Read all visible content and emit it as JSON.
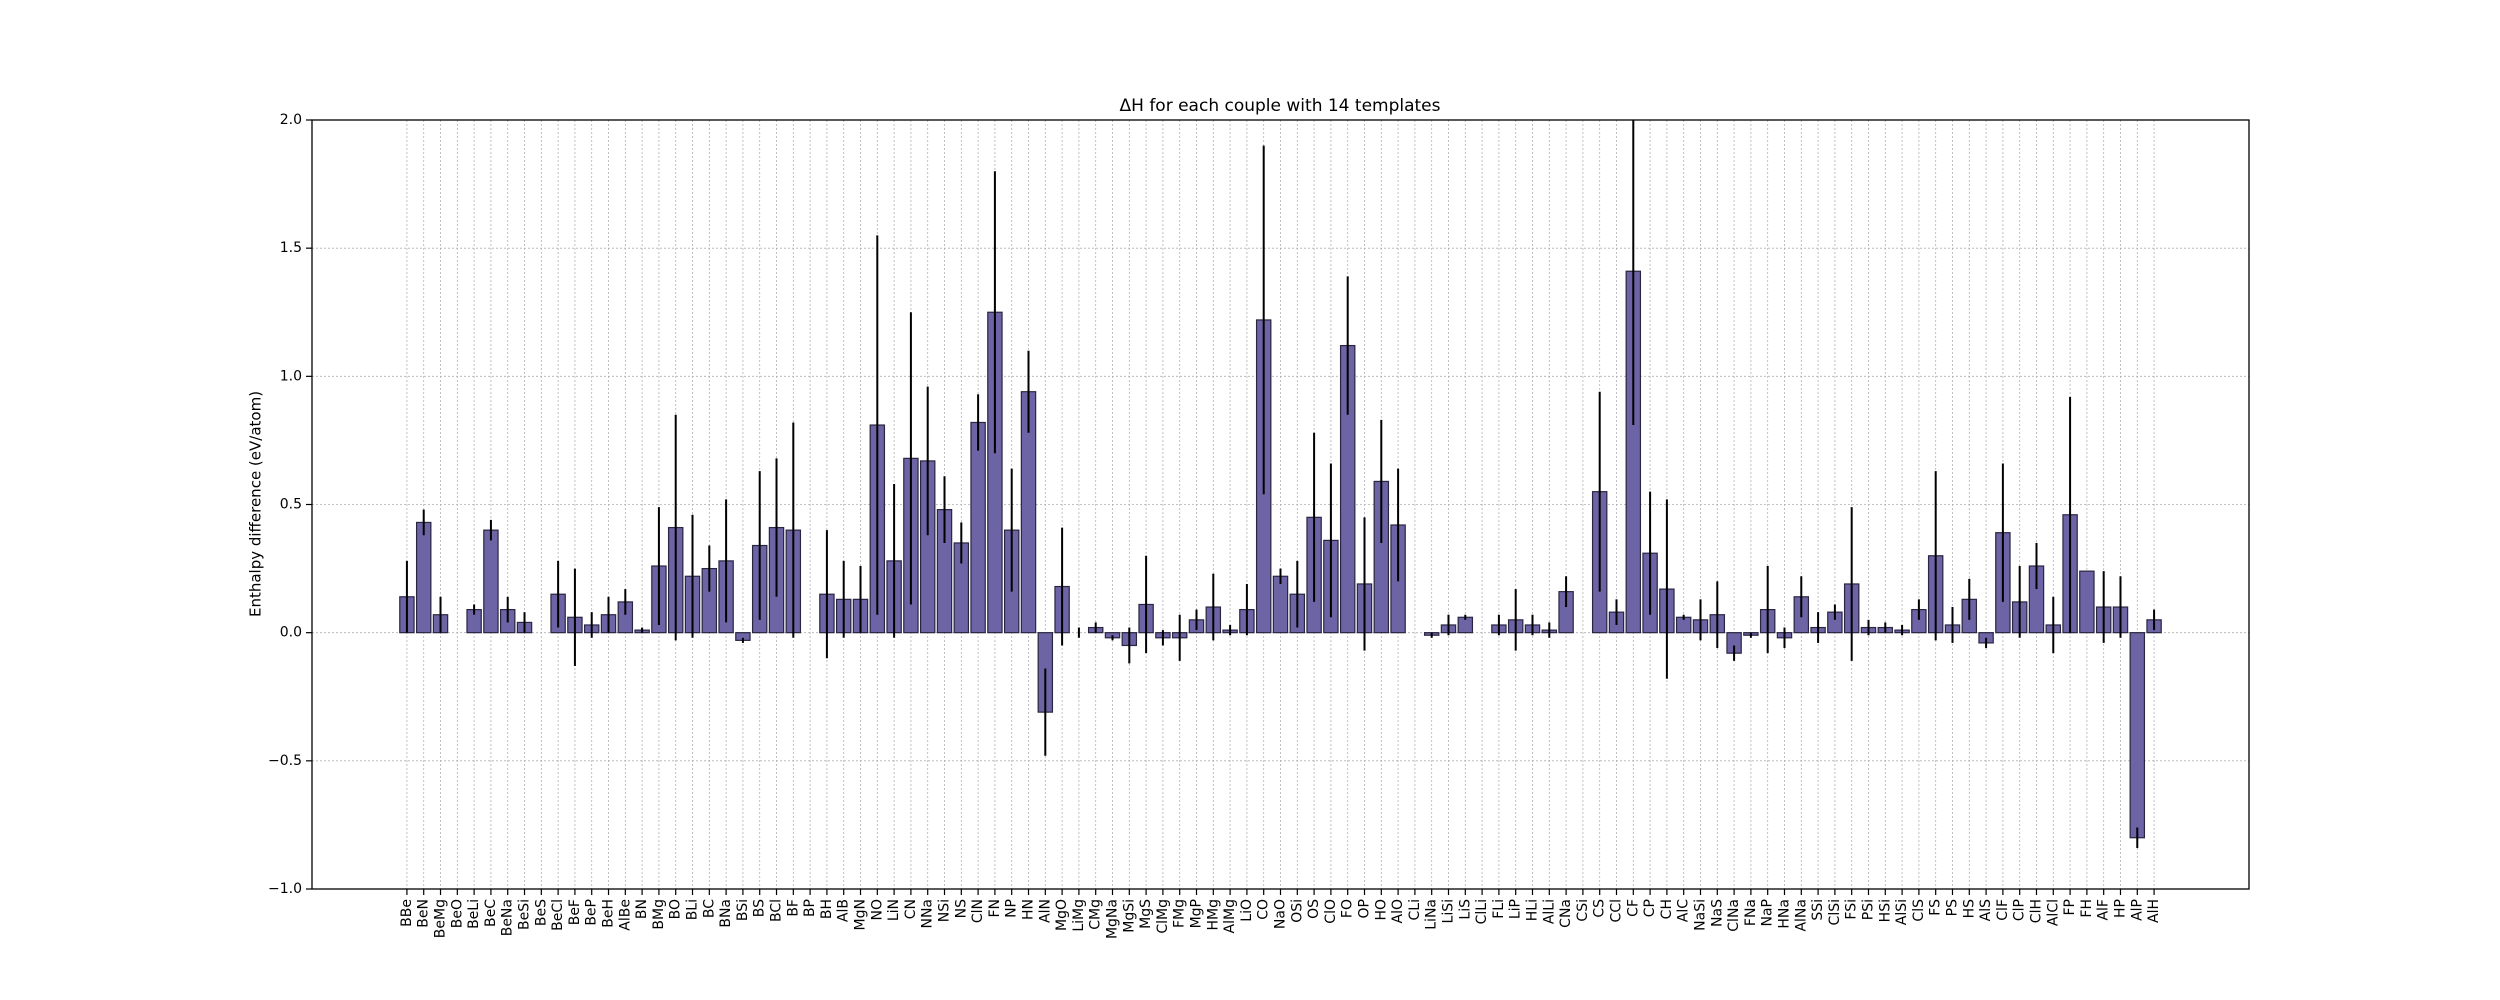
{
  "chart_data": {
    "type": "bar",
    "title": "ΔH for each couple with 14 templates",
    "y_label": "Enthalpy difference (eV/atom)",
    "categories": [
      "BBe",
      "BeN",
      "BeMg",
      "BeO",
      "BeLi",
      "BeC",
      "BeNa",
      "BeSi",
      "BeS",
      "BeCl",
      "BeF",
      "BeP",
      "BeH",
      "AlBe",
      "BN",
      "BMg",
      "BO",
      "BLi",
      "BC",
      "BNa",
      "BSi",
      "BS",
      "BCl",
      "BF",
      "BP",
      "BH",
      "AlB",
      "MgN",
      "NO",
      "LiN",
      "CN",
      "NNa",
      "NSi",
      "NS",
      "ClN",
      "FN",
      "NP",
      "HN",
      "AlN",
      "MgO",
      "LiMg",
      "CMg",
      "MgNa",
      "MgSi",
      "MgS",
      "ClMg",
      "FMg",
      "MgP",
      "HMg",
      "AlMg",
      "LiO",
      "CO",
      "NaO",
      "OSi",
      "OS",
      "ClO",
      "FO",
      "OP",
      "HO",
      "AlO",
      "CLi",
      "LiNa",
      "LiSi",
      "LiS",
      "ClLi",
      "FLi",
      "LiP",
      "HLi",
      "AlLi",
      "CNa",
      "CSi",
      "CS",
      "CCl",
      "CF",
      "CP",
      "CH",
      "AlC",
      "NaSi",
      "NaS",
      "ClNa",
      "FNa",
      "NaP",
      "HNa",
      "AlNa",
      "SSi",
      "ClSi",
      "FSi",
      "PSi",
      "HSi",
      "AlSi",
      "ClS",
      "FS",
      "PS",
      "HS",
      "AlS",
      "ClF",
      "ClP",
      "ClH",
      "AlCl",
      "FP",
      "FH",
      "AlF",
      "HP",
      "AlP",
      "AlH"
    ],
    "values": [
      0.14,
      0.43,
      0.07,
      0.0,
      0.09,
      0.4,
      0.09,
      0.04,
      0.0,
      0.15,
      0.06,
      0.03,
      0.07,
      0.12,
      0.01,
      0.26,
      0.41,
      0.22,
      0.25,
      0.28,
      -0.03,
      0.34,
      0.41,
      0.4,
      0.0,
      0.15,
      0.13,
      0.13,
      0.81,
      0.28,
      0.68,
      0.67,
      0.48,
      0.35,
      0.82,
      1.25,
      0.4,
      0.94,
      -0.31,
      0.18,
      0.0,
      0.02,
      -0.02,
      -0.05,
      0.11,
      -0.02,
      -0.02,
      0.05,
      0.1,
      0.01,
      0.09,
      1.22,
      0.22,
      0.15,
      0.45,
      0.36,
      1.12,
      0.19,
      0.59,
      0.42,
      0.0,
      -0.01,
      0.03,
      0.06,
      0.0,
      0.03,
      0.05,
      0.03,
      0.01,
      0.16,
      0.0,
      0.55,
      0.08,
      1.41,
      0.31,
      0.17,
      0.06,
      0.05,
      0.07,
      -0.08,
      -0.01,
      0.09,
      -0.02,
      0.14,
      0.02,
      0.08,
      0.19,
      0.02,
      0.02,
      0.01,
      0.09,
      0.3,
      0.03,
      0.13,
      -0.04,
      0.39,
      0.12,
      0.26,
      0.03,
      0.46,
      0.24,
      0.1,
      0.1,
      -0.8,
      0.05
    ],
    "errors": [
      0.14,
      0.05,
      0.07,
      0.0,
      0.02,
      0.04,
      0.05,
      0.04,
      0.0,
      0.13,
      0.19,
      0.05,
      0.07,
      0.05,
      0.01,
      0.23,
      0.44,
      0.24,
      0.09,
      0.24,
      0.01,
      0.29,
      0.27,
      0.42,
      0.0,
      0.25,
      0.15,
      0.13,
      0.74,
      0.3,
      0.57,
      0.29,
      0.13,
      0.08,
      0.11,
      0.55,
      0.24,
      0.16,
      0.17,
      0.23,
      0.02,
      0.02,
      0.01,
      0.07,
      0.19,
      0.03,
      0.09,
      0.04,
      0.13,
      0.02,
      0.1,
      0.68,
      0.03,
      0.13,
      0.33,
      0.3,
      0.27,
      0.26,
      0.24,
      0.22,
      0.0,
      0.01,
      0.04,
      0.01,
      0.0,
      0.04,
      0.12,
      0.04,
      0.03,
      0.06,
      0.0,
      0.39,
      0.05,
      0.6,
      0.24,
      0.35,
      0.01,
      0.08,
      0.13,
      0.03,
      0.01,
      0.17,
      0.04,
      0.08,
      0.06,
      0.03,
      0.3,
      0.03,
      0.02,
      0.02,
      0.04,
      0.33,
      0.07,
      0.08,
      0.02,
      0.27,
      0.14,
      0.09,
      0.11,
      0.46,
      0.0,
      0.14,
      0.12,
      0.04,
      0.04
    ],
    "color": "#6d64a6",
    "ylim": [
      -1.0,
      2.0
    ],
    "yticks": [
      {
        "value": -1.0,
        "label": "−1.0"
      },
      {
        "value": -0.5,
        "label": "−0.5"
      },
      {
        "value": 0.0,
        "label": "0.0"
      },
      {
        "value": 0.5,
        "label": "0.5"
      },
      {
        "value": 1.0,
        "label": "1.0"
      },
      {
        "value": 1.5,
        "label": "1.5"
      },
      {
        "value": 2.0,
        "label": "2.0"
      }
    ],
    "grid": true
  }
}
